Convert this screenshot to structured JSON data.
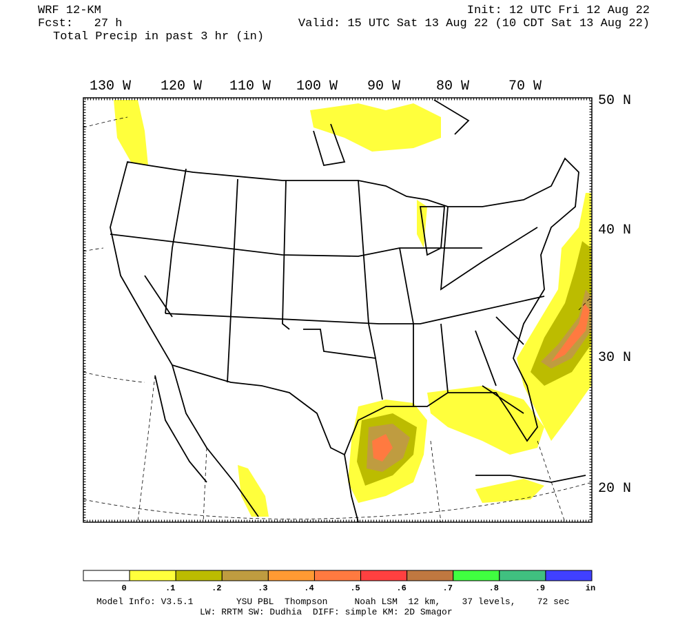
{
  "header": {
    "model": "WRF 12-KM",
    "forecast": "Fcst:   27 h",
    "field": "Total Precip in past 3 hr (in)",
    "init": "Init: 12 UTC Fri 12 Aug 22",
    "valid": "Valid: 15 UTC Sat 13 Aug 22 (10 CDT Sat 13 Aug 22)"
  },
  "map": {
    "lon_labels": [
      "130 W",
      "120 W",
      "110 W",
      "100 W",
      "90 W",
      "80 W",
      "70 W"
    ],
    "lat_labels": [
      "50 N",
      "40 N",
      "30 N",
      "20 N"
    ]
  },
  "colorbar": {
    "labels": [
      "0",
      ".1",
      ".2",
      ".3",
      ".4",
      ".5",
      ".6",
      ".7",
      ".8",
      ".9"
    ],
    "unit": "in",
    "colors": [
      "#ffffff",
      "#ffff3c",
      "#bcbc00",
      "#bf9c40",
      "#ff9a33",
      "#ff7a40",
      "#ff4040",
      "#c07840",
      "#40ff40",
      "#40c080",
      "#4040ff"
    ]
  },
  "footer": {
    "line1": "Model Info: V3.5.1        YSU PBL  Thompson     Noah LSM  12 km,    37 levels,    72 sec",
    "line2": "LW: RRTM SW: Dudhia  DIFF: simple KM: 2D Smagor"
  }
}
